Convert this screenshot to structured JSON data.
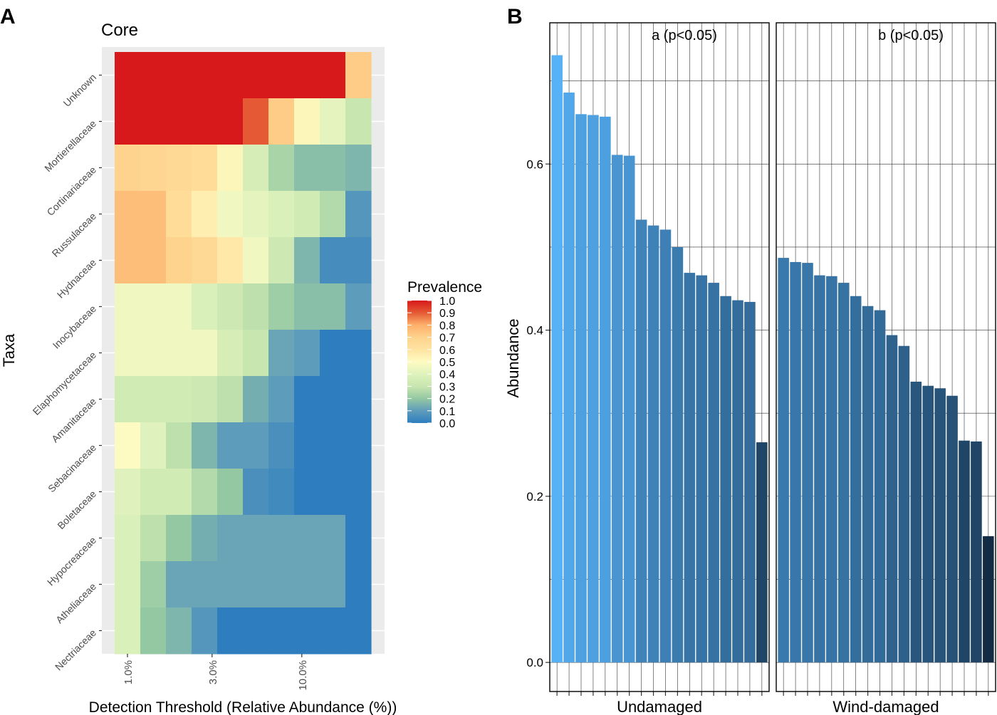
{
  "figure": {
    "panel_a_letter": "A",
    "panel_b_letter": "B"
  },
  "colors": {
    "panel_bg": "#ebebeb",
    "grid_minor": "#ffffff",
    "bar_light": "#56b1f7",
    "bar_dark": "#132b43",
    "grid_b": "#333333"
  },
  "chart_data": [
    {
      "type": "heatmap",
      "title": "Core",
      "xlabel": "Detection Threshold (Relative Abundance (%))",
      "ylabel": "Taxa",
      "x_tick_labels": [
        "1.0%",
        "3.0%",
        "10.0%"
      ],
      "x_tick_column_index": [
        0.5,
        3.8,
        7.3
      ],
      "rows": [
        "Unknown",
        "Mortierellaceae",
        "Cortinariaceae",
        "Russulaceae",
        "Hydnaceae",
        "Inocybaceae",
        "Elaphomycetaceae",
        "Amanitaceae",
        "Sebacinaceae",
        "Boletaceae",
        "Hypocreaceae",
        "Atheliaceae",
        "Nectriaceae"
      ],
      "columns": 10,
      "values": [
        [
          1.0,
          1.0,
          1.0,
          1.0,
          1.0,
          1.0,
          1.0,
          1.0,
          1.0,
          0.72
        ],
        [
          1.0,
          1.0,
          1.0,
          1.0,
          1.0,
          0.9,
          0.72,
          0.52,
          0.42,
          0.3
        ],
        [
          0.7,
          0.68,
          0.66,
          0.64,
          0.52,
          0.36,
          0.24,
          0.18,
          0.18,
          0.16
        ],
        [
          0.76,
          0.76,
          0.64,
          0.55,
          0.46,
          0.42,
          0.38,
          0.34,
          0.26,
          0.08
        ],
        [
          0.76,
          0.76,
          0.7,
          0.66,
          0.58,
          0.46,
          0.32,
          0.16,
          0.05,
          0.05
        ],
        [
          0.46,
          0.46,
          0.46,
          0.38,
          0.32,
          0.28,
          0.22,
          0.18,
          0.18,
          0.1
        ],
        [
          0.46,
          0.46,
          0.46,
          0.46,
          0.36,
          0.3,
          0.12,
          0.1,
          0.0,
          0.0
        ],
        [
          0.34,
          0.34,
          0.34,
          0.32,
          0.28,
          0.14,
          0.1,
          0.0,
          0.0,
          0.0
        ],
        [
          0.5,
          0.4,
          0.28,
          0.16,
          0.1,
          0.1,
          0.06,
          0.0,
          0.0,
          0.0
        ],
        [
          0.4,
          0.34,
          0.34,
          0.26,
          0.2,
          0.06,
          0.04,
          0.0,
          0.0,
          0.0
        ],
        [
          0.38,
          0.28,
          0.2,
          0.14,
          0.12,
          0.12,
          0.12,
          0.12,
          0.12,
          0.0
        ],
        [
          0.38,
          0.22,
          0.12,
          0.12,
          0.12,
          0.12,
          0.12,
          0.12,
          0.12,
          0.0
        ],
        [
          0.38,
          0.2,
          0.16,
          0.08,
          0.0,
          0.0,
          0.0,
          0.0,
          0.0,
          0.0
        ]
      ],
      "legend": {
        "title": "Prevalence",
        "ticks": [
          "1.0",
          "0.9",
          "0.8",
          "0.7",
          "0.6",
          "0.5",
          "0.4",
          "0.3",
          "0.2",
          "0.1",
          "0.0"
        ],
        "stops": [
          {
            "v": 0.0,
            "c": "#2e7ebf"
          },
          {
            "v": 0.1,
            "c": "#5e9cbb"
          },
          {
            "v": 0.2,
            "c": "#94c8a3"
          },
          {
            "v": 0.3,
            "c": "#c8e6b0"
          },
          {
            "v": 0.4,
            "c": "#dff2bd"
          },
          {
            "v": 0.5,
            "c": "#fdfbc2"
          },
          {
            "v": 0.6,
            "c": "#ffe3a1"
          },
          {
            "v": 0.7,
            "c": "#fed38d"
          },
          {
            "v": 0.8,
            "c": "#fdb06b"
          },
          {
            "v": 0.9,
            "c": "#e55a34"
          },
          {
            "v": 1.0,
            "c": "#d7191c"
          }
        ]
      }
    },
    {
      "type": "bar",
      "ylabel": "Abundance",
      "ylim": [
        -0.035,
        0.77
      ],
      "y_ticks": [
        0.0,
        0.2,
        0.4,
        0.6
      ],
      "y_tick_labels": [
        "0.0",
        "0.2",
        "0.4",
        "0.6"
      ],
      "y_minor": [
        0.1,
        0.3,
        0.5,
        0.7
      ],
      "panels": [
        {
          "label": "Undamaged",
          "annotation": "a (p<0.05)",
          "values": [
            0.731,
            0.686,
            0.66,
            0.659,
            0.657,
            0.611,
            0.61,
            0.533,
            0.526,
            0.521,
            0.5,
            0.469,
            0.466,
            0.457,
            0.441,
            0.436,
            0.434,
            0.265
          ]
        },
        {
          "label": "Wind-damaged",
          "annotation": "b (p<0.05)",
          "values": [
            0.487,
            0.482,
            0.481,
            0.466,
            0.465,
            0.457,
            0.441,
            0.429,
            0.424,
            0.394,
            0.381,
            0.338,
            0.333,
            0.33,
            0.321,
            0.267,
            0.266,
            0.152
          ]
        }
      ]
    }
  ]
}
